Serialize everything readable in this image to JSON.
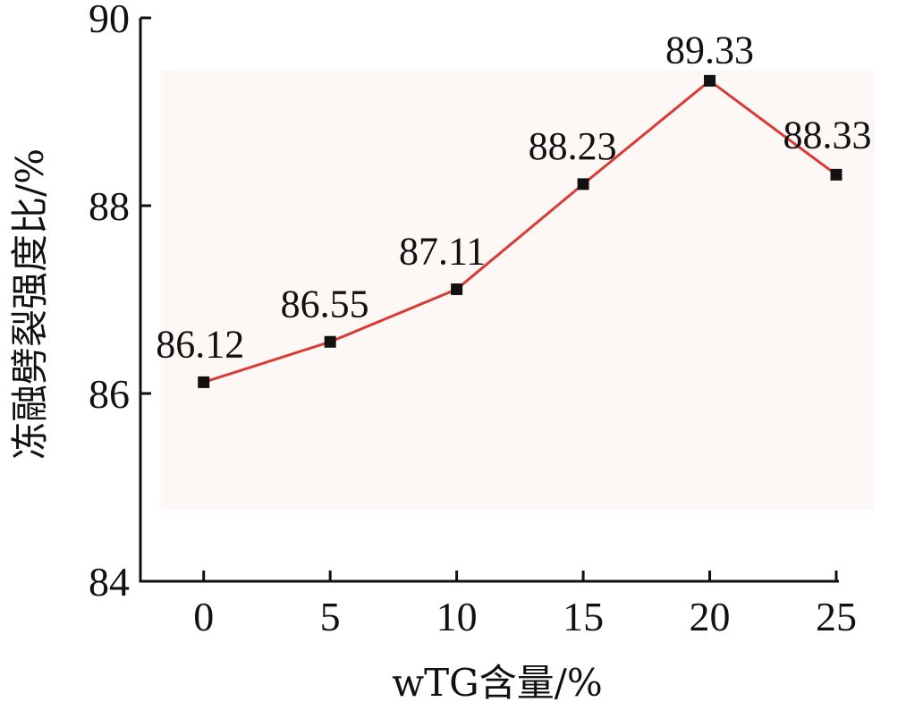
{
  "chart_data": {
    "type": "line",
    "xlabel": "wTG含量/%",
    "ylabel": "冻融劈裂强度比/%",
    "x": [
      0,
      5,
      10,
      15,
      20,
      25
    ],
    "x_tick_labels": [
      "0",
      "5",
      "10",
      "15",
      "20",
      "25"
    ],
    "y_tick_labels": [
      "84",
      "86",
      "88",
      "90"
    ],
    "y_ticks": [
      84,
      86,
      88,
      90
    ],
    "ylim": [
      84,
      90
    ],
    "xlim": [
      -2.5,
      25
    ],
    "series": [
      {
        "values": [
          86.12,
          86.55,
          87.11,
          88.23,
          89.33,
          88.33
        ]
      }
    ],
    "data_labels": [
      "86.12",
      "86.55",
      "87.11",
      "88.23",
      "89.33",
      "88.33"
    ],
    "line_color": "#d93a34",
    "marker_color": "#111111",
    "background_band_color": "#fdf8f6",
    "grid": false,
    "legend": "none"
  }
}
